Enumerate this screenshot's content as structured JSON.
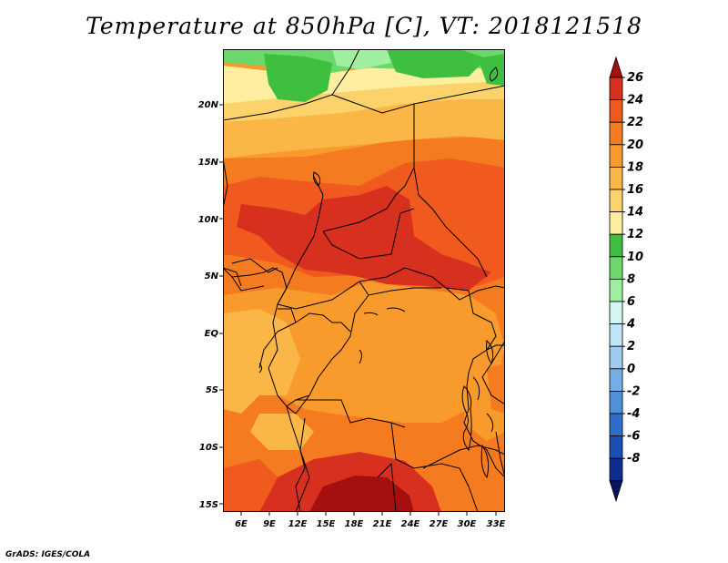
{
  "title": "Temperature at 850hPa [C], VT: 2018121518",
  "credit": "GrADS: IGES/COLA",
  "map": {
    "lat_labels": [
      "20N",
      "15N",
      "10N",
      "5N",
      "EQ",
      "5S",
      "10S",
      "15S"
    ],
    "lon_labels": [
      "6E",
      "9E",
      "12E",
      "15E",
      "18E",
      "21E",
      "24E",
      "27E",
      "30E",
      "33E"
    ]
  },
  "colorbar": {
    "levels": [
      "26",
      "24",
      "22",
      "20",
      "18",
      "16",
      "14",
      "12",
      "10",
      "8",
      "6",
      "4",
      "2",
      "0",
      "-2",
      "-4",
      "-6",
      "-8"
    ],
    "colors": [
      "#a50f0f",
      "#d7301f",
      "#f05a1e",
      "#f47b20",
      "#f89b2c",
      "#fab646",
      "#fcd36b",
      "#fdeea0",
      "#3fbf3f",
      "#6ad86a",
      "#a0eea0",
      "#d4f7f3",
      "#c1e3f7",
      "#9ecbf0",
      "#74aee6",
      "#4f8fdb",
      "#2f6dcd",
      "#1a4fb5",
      "#0c2d8f",
      "#081463"
    ]
  }
}
